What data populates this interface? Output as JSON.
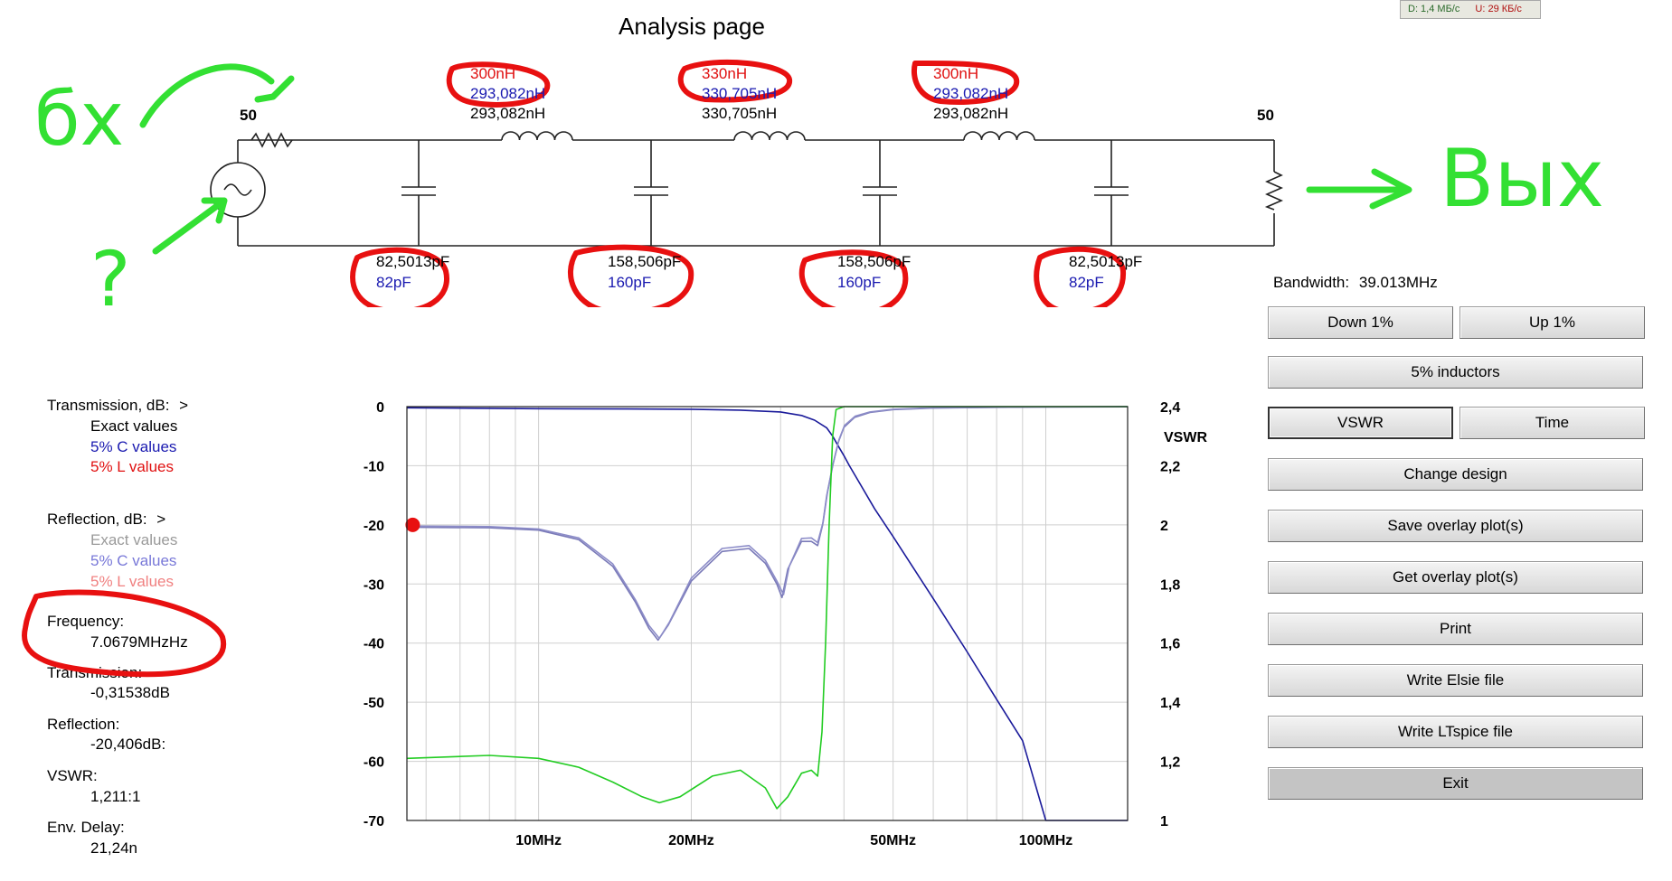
{
  "page_title": "Analysis page",
  "net_status": {
    "down": "D: 1,4 МБ/с",
    "up": "U: 29 КБ/с"
  },
  "circuit": {
    "source_ohms": "50",
    "load_ohms": "50",
    "inductors": [
      {
        "l5": "300nH",
        "exact": "293,082nH",
        "calc": "293,082nH"
      },
      {
        "l5": "330nH",
        "exact": "330,705nH",
        "calc": "330,705nH"
      },
      {
        "l5": "300nH",
        "exact": "293,082nH",
        "calc": "293,082nH"
      }
    ],
    "capacitors": [
      {
        "calc": "82,5013pF",
        "c5": "82pF"
      },
      {
        "calc": "158,506pF",
        "c5": "160pF"
      },
      {
        "calc": "158,506pF",
        "c5": "160pF"
      },
      {
        "calc": "82,5013pF",
        "c5": "82pF"
      }
    ]
  },
  "annotations": {
    "input_scrawl": "бх",
    "question_mark": "?",
    "output_scrawl": "Вых"
  },
  "legend": {
    "transmission_header": "Transmission, dB:",
    "transmission_arrow": ">",
    "reflection_header": "Reflection, dB:",
    "reflection_arrow": ">",
    "exact_values": "Exact values",
    "c_values": "5% C values",
    "l_values": "5% L values"
  },
  "readouts": {
    "frequency_label": "Frequency:",
    "frequency_value": "7.0679MHzHz",
    "transmission_label": "Transmission:",
    "transmission_value": "-0,31538dB",
    "reflection_label": "Reflection:",
    "reflection_value": "-20,406dB:",
    "vswr_label": "VSWR:",
    "vswr_value": "1,211:1",
    "delay_label": "Env. Delay:",
    "delay_value": "21,24n"
  },
  "controls": {
    "bandwidth_label": "Bandwidth:",
    "bandwidth_value": "39.013MHz",
    "down_1pct": "Down 1%",
    "up_1pct": "Up 1%",
    "inductors_5pct": "5% inductors",
    "vswr": "VSWR",
    "time": "Time",
    "change_design": "Change design",
    "save_overlay": "Save overlay plot(s)",
    "get_overlay": "Get overlay plot(s)",
    "print": "Print",
    "write_elsie": "Write Elsie file",
    "write_ltspice": "Write LTspice file",
    "exit": "Exit"
  },
  "chart_data": {
    "type": "line",
    "x_scale": "log",
    "xlim": [
      5.5,
      145
    ],
    "ylim": [
      -70,
      0
    ],
    "y2lim": [
      1,
      2.4
    ],
    "y2label": "VSWR",
    "x_tick_labels": [
      {
        "value": 10,
        "label": "10MHz"
      },
      {
        "value": 20,
        "label": "20MHz"
      },
      {
        "value": 50,
        "label": "50MHz"
      },
      {
        "value": 100,
        "label": "100MHz"
      }
    ],
    "y_tick_labels": [
      "0",
      "-10",
      "-20",
      "-30",
      "-40",
      "-50",
      "-60",
      "-70"
    ],
    "y2_tick_labels": [
      "2,4",
      "2,2",
      "2",
      "1,8",
      "1,6",
      "1,4",
      "1,2",
      "1"
    ],
    "grid": true,
    "marker": {
      "x": 5.6,
      "y": -20
    },
    "series": [
      {
        "role": "transmission",
        "color": "#1a1a9a",
        "axis": "left",
        "x": [
          5.5,
          10,
          15,
          20,
          25,
          30,
          33,
          35,
          37,
          38,
          39,
          40,
          41,
          43,
          46,
          50,
          60,
          70,
          80,
          90,
          100,
          145
        ],
        "y": [
          -0.2,
          -0.35,
          -0.4,
          -0.45,
          -0.6,
          -0.9,
          -1.5,
          -2.3,
          -3.6,
          -5,
          -6.7,
          -8.3,
          -10,
          -13,
          -17.3,
          -22,
          -32.5,
          -41.5,
          -49.5,
          -56.5,
          -70,
          -70
        ]
      },
      {
        "role": "reflection",
        "color": "#7a7ab8",
        "axis": "left",
        "x": [
          5.5,
          8,
          10,
          12,
          14,
          15.5,
          16.5,
          17.2,
          18,
          20,
          23,
          26,
          28,
          29.5,
          30.2,
          31,
          33,
          34.5,
          35.5,
          36.3,
          37,
          38,
          39,
          40,
          42,
          45,
          50,
          60,
          80,
          100,
          145
        ],
        "y": [
          -20.4,
          -20.5,
          -20.9,
          -22.5,
          -27,
          -33,
          -37.5,
          -39.5,
          -37,
          -29.5,
          -24.5,
          -24,
          -26.5,
          -30,
          -32.3,
          -27.5,
          -22.8,
          -22.8,
          -23.5,
          -20,
          -15,
          -10,
          -6,
          -3.5,
          -1.8,
          -1,
          -0.5,
          -0.25,
          -0.12,
          -0.06,
          -0.03
        ]
      },
      {
        "role": "reflection-overlay",
        "color": "#8c8cc8",
        "axis": "left",
        "x": [
          5.5,
          8,
          10,
          12,
          14,
          15.5,
          16.5,
          17.3,
          18.1,
          20,
          23,
          26,
          28,
          29.5,
          30.4,
          31.2,
          33,
          34.5,
          35.5,
          36.4,
          37.1,
          38.1,
          39.1,
          40.1,
          42.1,
          45,
          50,
          60,
          80,
          100,
          145
        ],
        "y": [
          -20.2,
          -20.3,
          -20.7,
          -22.2,
          -26.6,
          -32.6,
          -37,
          -39.2,
          -36.5,
          -29,
          -24,
          -23.5,
          -26,
          -29.5,
          -31.8,
          -27,
          -22.3,
          -22.2,
          -23,
          -19.5,
          -14.6,
          -9.6,
          -5.6,
          -3.2,
          -1.6,
          -0.9,
          -0.45,
          -0.22,
          -0.1,
          -0.05,
          -0.02
        ]
      },
      {
        "role": "vswr",
        "color": "#22cc22",
        "axis": "right",
        "x": [
          5.5,
          8,
          10,
          12,
          14,
          16,
          17.3,
          19,
          22,
          25,
          28,
          29.5,
          31,
          33,
          34.5,
          35.5,
          36.2,
          36.8,
          37.4,
          38,
          38.6,
          40,
          50,
          100,
          145
        ],
        "y": [
          1.21,
          1.22,
          1.21,
          1.18,
          1.13,
          1.08,
          1.06,
          1.08,
          1.15,
          1.17,
          1.11,
          1.04,
          1.08,
          1.16,
          1.17,
          1.15,
          1.3,
          1.6,
          2.0,
          2.3,
          2.39,
          2.4,
          2.4,
          2.4,
          2.4
        ]
      }
    ]
  }
}
